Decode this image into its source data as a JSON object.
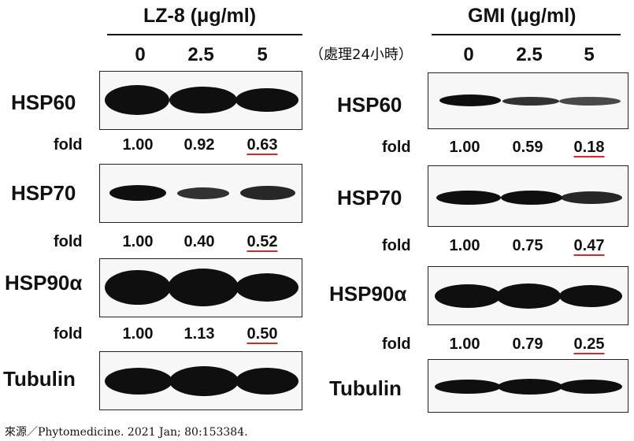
{
  "panels": [
    {
      "treatment": "LZ-8 (μg/ml)",
      "concentrations": [
        "0",
        "2.5",
        "5"
      ],
      "blots": [
        {
          "protein": "HSP60",
          "fold_label": "fold",
          "folds": [
            "1.00",
            "0.92",
            "0.63"
          ],
          "highlighted_index": 2
        },
        {
          "protein": "HSP70",
          "fold_label": "fold",
          "folds": [
            "1.00",
            "0.40",
            "0.52"
          ],
          "highlighted_index": 2
        },
        {
          "protein": "HSP90α",
          "fold_label": "fold",
          "folds": [
            "1.00",
            "1.13",
            "0.50"
          ],
          "highlighted_index": 2
        },
        {
          "protein": "Tubulin"
        }
      ]
    },
    {
      "treatment": "GMI (μg/ml)",
      "concentrations": [
        "0",
        "2.5",
        "5"
      ],
      "blots": [
        {
          "protein": "HSP60",
          "fold_label": "fold",
          "folds": [
            "1.00",
            "0.59",
            "0.18"
          ],
          "highlighted_index": 2
        },
        {
          "protein": "HSP70",
          "fold_label": "fold",
          "folds": [
            "1.00",
            "0.75",
            "0.47"
          ],
          "highlighted_index": 2
        },
        {
          "protein": "HSP90α",
          "fold_label": "fold",
          "folds": [
            "1.00",
            "0.79",
            "0.25"
          ],
          "highlighted_index": 2
        },
        {
          "protein": "Tubulin"
        }
      ]
    }
  ],
  "treatment_duration": "（處理24小時）",
  "source": "來源／Phytomedicine. 2021 Jan; 80:153384.",
  "colors": {
    "highlight_underline": "#d6262e",
    "band": "#0f0f0f",
    "blot_background": "#f7f7f7"
  }
}
